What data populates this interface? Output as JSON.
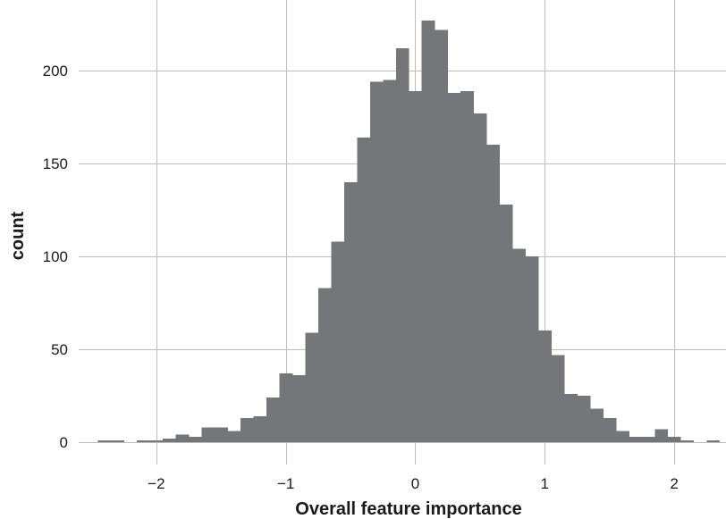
{
  "chart_data": {
    "type": "bar",
    "xlabel": "Overall feature importance",
    "ylabel": "count",
    "bin_width": 0.1,
    "bin_start": -2.45,
    "counts": [
      1,
      1,
      0,
      1,
      1,
      2,
      4,
      3,
      8,
      8,
      6,
      13,
      14,
      24,
      37,
      36,
      59,
      83,
      108,
      140,
      164,
      194,
      195,
      212,
      189,
      227,
      222,
      188,
      189,
      177,
      160,
      128,
      104,
      100,
      60,
      47,
      26,
      25,
      18,
      13,
      6,
      3,
      3,
      7,
      3,
      1,
      0,
      1
    ],
    "xlim": [
      -2.6,
      2.4
    ],
    "ylim": [
      -12,
      238
    ],
    "x_ticks": [
      -2,
      -1,
      0,
      1,
      2
    ],
    "x_tick_labels": [
      "−2",
      "−1",
      "0",
      "1",
      "2"
    ],
    "y_ticks": [
      0,
      50,
      100,
      150,
      200
    ],
    "y_tick_labels": [
      "0",
      "50",
      "100",
      "150",
      "200"
    ],
    "grid": true,
    "legend": "none",
    "bar_color": "#75767a",
    "grid_color": "#bdbdbd"
  }
}
